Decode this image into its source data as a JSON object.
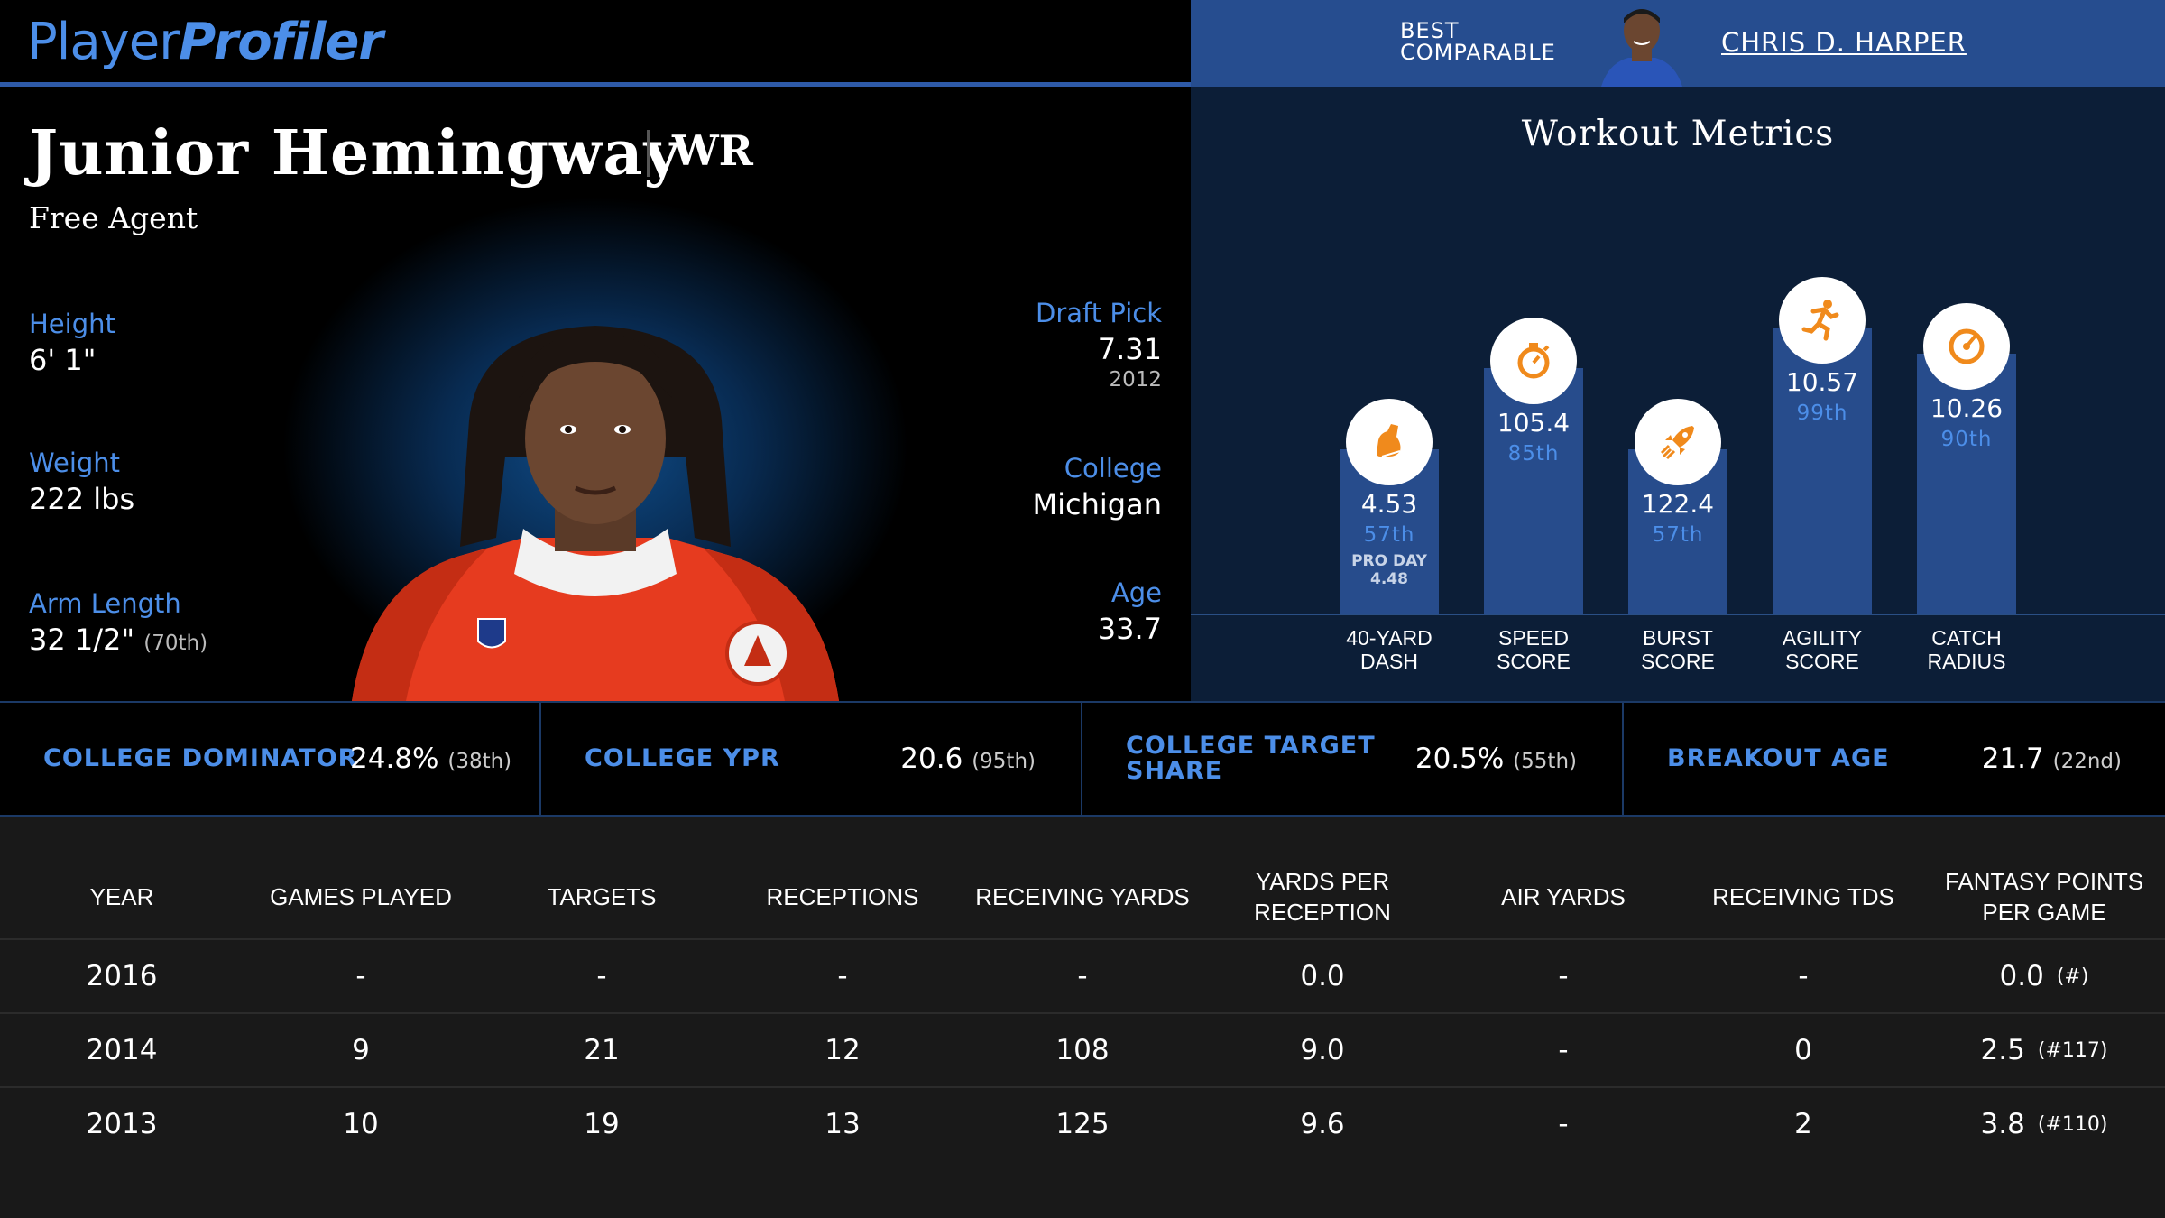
{
  "header": {
    "logo_part1": "Player",
    "logo_part2": "Profiler",
    "best_comparable_label_line1": "BEST",
    "best_comparable_label_line2": "COMPARABLE",
    "best_comparable_name": "CHRIS D. HARPER"
  },
  "player": {
    "name": "Junior Hemingway",
    "position": "WR",
    "team": "Free Agent",
    "height_label": "Height",
    "height": "6' 1\"",
    "weight_label": "Weight",
    "weight": "222 lbs",
    "arm_label": "Arm Length",
    "arm": "32 1/2\"",
    "arm_rank": "(70th)",
    "draft_label": "Draft Pick",
    "draft_pick": "7.31",
    "draft_year": "2012",
    "college_label": "College",
    "college": "Michigan",
    "age_label": "Age",
    "age": "33.7"
  },
  "workout": {
    "title": "Workout Metrics",
    "bars": [
      {
        "label_line1": "40-YARD",
        "label_line2": "DASH",
        "value": "4.53",
        "percentile": "57th",
        "note_line1": "PRO DAY",
        "note_line2": "4.48",
        "icon": "shoe-icon",
        "pct": 57
      },
      {
        "label_line1": "SPEED",
        "label_line2": "SCORE",
        "value": "105.4",
        "percentile": "85th",
        "note_line1": "",
        "note_line2": "",
        "icon": "stopwatch-icon",
        "pct": 85
      },
      {
        "label_line1": "BURST",
        "label_line2": "SCORE",
        "value": "122.4",
        "percentile": "57th",
        "note_line1": "",
        "note_line2": "",
        "icon": "rocket-icon",
        "pct": 57
      },
      {
        "label_line1": "AGILITY",
        "label_line2": "SCORE",
        "value": "10.57",
        "percentile": "99th",
        "note_line1": "",
        "note_line2": "",
        "icon": "runner-icon",
        "pct": 99
      },
      {
        "label_line1": "CATCH",
        "label_line2": "RADIUS",
        "value": "10.26",
        "percentile": "90th",
        "note_line1": "",
        "note_line2": "",
        "icon": "target-icon",
        "pct": 90
      }
    ]
  },
  "college_metrics": [
    {
      "label_line1": "COLLEGE DOMINATOR",
      "label_line2": "",
      "value": "24.8%",
      "rank": "(38th)"
    },
    {
      "label_line1": "COLLEGE YPR",
      "label_line2": "",
      "value": "20.6",
      "rank": "(95th)"
    },
    {
      "label_line1": "COLLEGE TARGET",
      "label_line2": "SHARE",
      "value": "20.5%",
      "rank": "(55th)"
    },
    {
      "label_line1": "BREAKOUT AGE",
      "label_line2": "",
      "value": "21.7",
      "rank": "(22nd)"
    }
  ],
  "table": {
    "headers": [
      "YEAR",
      "GAMES PLAYED",
      "TARGETS",
      "RECEPTIONS",
      "RECEIVING YARDS",
      "YARDS PER RECEPTION",
      "AIR YARDS",
      "RECEIVING TDS",
      "FANTASY POINTS PER GAME"
    ],
    "rows": [
      {
        "cells": [
          "2016",
          "-",
          "-",
          "-",
          "-",
          "0.0",
          "-",
          "-",
          "0.0"
        ],
        "rank": "(#)"
      },
      {
        "cells": [
          "2014",
          "9",
          "21",
          "12",
          "108",
          "9.0",
          "-",
          "0",
          "2.5"
        ],
        "rank": "(#117)"
      },
      {
        "cells": [
          "2013",
          "10",
          "19",
          "13",
          "125",
          "9.6",
          "-",
          "2",
          "3.8"
        ],
        "rank": "(#110)"
      }
    ]
  },
  "colors": {
    "accent": "#4c8ee8",
    "bar": "#274c8c",
    "icon": "#f08a1c",
    "header_right": "#264d8f"
  }
}
